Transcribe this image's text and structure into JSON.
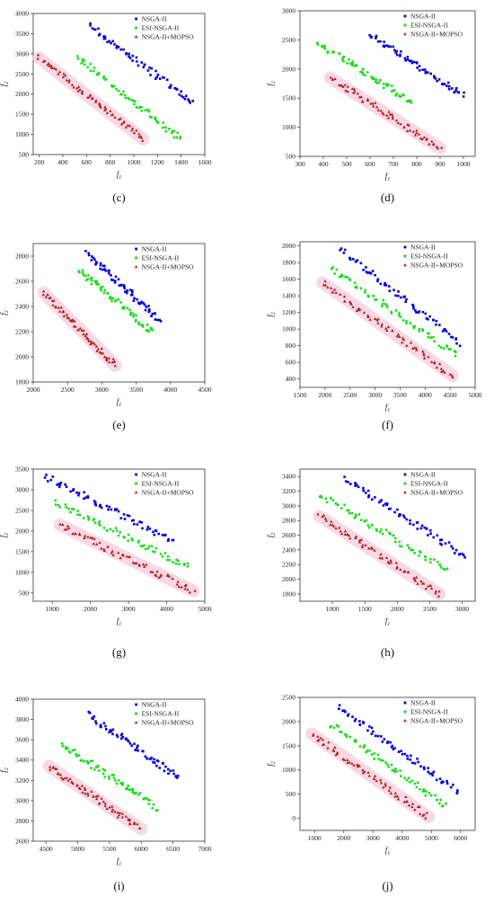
{
  "legend_labels": [
    "NSGA-II",
    "ESI-NSGA-II",
    "NSGA-II+MOPSO"
  ],
  "colors": {
    "nsga": "#0000d8",
    "esi": "#16e016",
    "mopso": "#b41e0a",
    "halo": "#f6cfe3",
    "axis": "#333333"
  },
  "chart_data": [
    {
      "type": "scatter",
      "panel_label": "(c)",
      "xlabel": "f1",
      "ylabel": "f2",
      "xlim": [
        150,
        1600
      ],
      "ylim": [
        500,
        4000
      ],
      "xticks": [
        200,
        400,
        600,
        800,
        1000,
        1200,
        1400,
        1600
      ],
      "yticks": [
        500,
        1000,
        1500,
        2000,
        2500,
        3000,
        3500,
        4000
      ],
      "legend": "top-right",
      "series": [
        {
          "name": "NSGA-II",
          "x0": 620,
          "y0": 3720,
          "x1": 1500,
          "y1": 1780
        },
        {
          "name": "ESI-NSGA-II",
          "x0": 520,
          "y0": 2930,
          "x1": 1400,
          "y1": 870
        },
        {
          "name": "NSGA-II+MOPSO",
          "x0": 200,
          "y0": 2900,
          "x1": 1080,
          "y1": 880
        }
      ]
    },
    {
      "type": "scatter",
      "panel_label": "(d)",
      "xlabel": "f1",
      "ylabel": "f2",
      "xlim": [
        300,
        1050
      ],
      "ylim": [
        500,
        3000
      ],
      "xticks": [
        300,
        400,
        500,
        600,
        700,
        800,
        900,
        1000
      ],
      "yticks": [
        500,
        1000,
        1500,
        2000,
        2500,
        3000
      ],
      "legend": "top-right",
      "series": [
        {
          "name": "NSGA-II",
          "x0": 600,
          "y0": 2580,
          "x1": 1000,
          "y1": 1540
        },
        {
          "name": "ESI-NSGA-II",
          "x0": 380,
          "y0": 2440,
          "x1": 780,
          "y1": 1420
        },
        {
          "name": "NSGA-II+MOPSO",
          "x0": 430,
          "y0": 1850,
          "x1": 900,
          "y1": 640
        }
      ]
    },
    {
      "type": "scatter",
      "panel_label": "(e)",
      "xlabel": "f1",
      "ylabel": "f2",
      "xlim": [
        2000,
        4500
      ],
      "ylim": [
        1800,
        2900
      ],
      "xticks": [
        2000,
        2500,
        3000,
        3500,
        4000,
        4500
      ],
      "yticks": [
        1800,
        2000,
        2200,
        2400,
        2600,
        2800
      ],
      "legend": "top-right",
      "series": [
        {
          "name": "NSGA-II",
          "x0": 2780,
          "y0": 2820,
          "x1": 3850,
          "y1": 2290
        },
        {
          "name": "ESI-NSGA-II",
          "x0": 2650,
          "y0": 2700,
          "x1": 3750,
          "y1": 2190
        },
        {
          "name": "NSGA-II+MOPSO",
          "x0": 2150,
          "y0": 2510,
          "x1": 3200,
          "y1": 1930
        }
      ]
    },
    {
      "type": "scatter",
      "panel_label": "(f)",
      "xlabel": "f1",
      "ylabel": "f2",
      "xlim": [
        1500,
        5000
      ],
      "ylim": [
        300,
        2050
      ],
      "xticks": [
        1500,
        2000,
        2500,
        3000,
        3500,
        4000,
        4500,
        5000
      ],
      "yticks": [
        400,
        600,
        800,
        1000,
        1200,
        1400,
        1600,
        1800,
        2000
      ],
      "legend": "top-right",
      "series": [
        {
          "name": "NSGA-II",
          "x0": 2300,
          "y0": 1960,
          "x1": 4700,
          "y1": 830
        },
        {
          "name": "ESI-NSGA-II",
          "x0": 2100,
          "y0": 1740,
          "x1": 4650,
          "y1": 680
        },
        {
          "name": "NSGA-II+MOPSO",
          "x0": 1950,
          "y0": 1560,
          "x1": 4550,
          "y1": 440
        }
      ]
    },
    {
      "type": "scatter",
      "panel_label": "(g)",
      "xlabel": "f1",
      "ylabel": "f2",
      "xlim": [
        500,
        5000
      ],
      "ylim": [
        300,
        3500
      ],
      "xticks": [
        1000,
        2000,
        3000,
        4000,
        5000
      ],
      "yticks": [
        500,
        1000,
        1500,
        2000,
        2500,
        3000,
        3500
      ],
      "legend": "top-right",
      "series": [
        {
          "name": "NSGA-II",
          "x0": 800,
          "y0": 3330,
          "x1": 4200,
          "y1": 1740
        },
        {
          "name": "ESI-NSGA-II",
          "x0": 1100,
          "y0": 2680,
          "x1": 4600,
          "y1": 1120
        },
        {
          "name": "NSGA-II+MOPSO",
          "x0": 1200,
          "y0": 2150,
          "x1": 4700,
          "y1": 550
        }
      ]
    },
    {
      "type": "scatter",
      "panel_label": "(h)",
      "xlabel": "f1",
      "ylabel": "f2",
      "xlim": [
        500,
        3200
      ],
      "ylim": [
        1700,
        3500
      ],
      "xticks": [
        1000,
        1500,
        2000,
        2500,
        3000
      ],
      "yticks": [
        1800,
        2000,
        2200,
        2400,
        2600,
        2800,
        3000,
        3200,
        3400
      ],
      "legend": "top-right",
      "series": [
        {
          "name": "NSGA-II",
          "x0": 1200,
          "y0": 3370,
          "x1": 3050,
          "y1": 2310
        },
        {
          "name": "ESI-NSGA-II",
          "x0": 800,
          "y0": 3160,
          "x1": 2800,
          "y1": 2110
        },
        {
          "name": "NSGA-II+MOPSO",
          "x0": 800,
          "y0": 2860,
          "x1": 2650,
          "y1": 1800
        }
      ]
    },
    {
      "type": "scatter",
      "panel_label": "(i)",
      "xlabel": "f1",
      "ylabel": "f2",
      "xlim": [
        4300,
        7000
      ],
      "ylim": [
        2600,
        4000
      ],
      "xticks": [
        4500,
        5000,
        5500,
        6000,
        6500,
        7000
      ],
      "yticks": [
        2600,
        2800,
        3000,
        3200,
        3400,
        3600,
        3800,
        4000
      ],
      "legend": "top-right",
      "series": [
        {
          "name": "NSGA-II",
          "x0": 5150,
          "y0": 3860,
          "x1": 6600,
          "y1": 3220
        },
        {
          "name": "ESI-NSGA-II",
          "x0": 4750,
          "y0": 3550,
          "x1": 6250,
          "y1": 2930
        },
        {
          "name": "NSGA-II+MOPSO",
          "x0": 4550,
          "y0": 3340,
          "x1": 6000,
          "y1": 2720
        }
      ]
    },
    {
      "type": "scatter",
      "panel_label": "(j)",
      "xlabel": "f1",
      "ylabel": "f2",
      "xlim": [
        500,
        6500
      ],
      "ylim": [
        -250,
        2500
      ],
      "xticks": [
        1000,
        2000,
        3000,
        4000,
        5000,
        6000
      ],
      "yticks": [
        0,
        500,
        1000,
        1500,
        2000,
        2500
      ],
      "legend": "top-right",
      "series": [
        {
          "name": "NSGA-II",
          "x0": 1850,
          "y0": 2280,
          "x1": 5900,
          "y1": 560
        },
        {
          "name": "ESI-NSGA-II",
          "x0": 1550,
          "y0": 1950,
          "x1": 5500,
          "y1": 250
        },
        {
          "name": "NSGA-II+MOPSO",
          "x0": 900,
          "y0": 1750,
          "x1": 4900,
          "y1": 30
        }
      ]
    }
  ]
}
